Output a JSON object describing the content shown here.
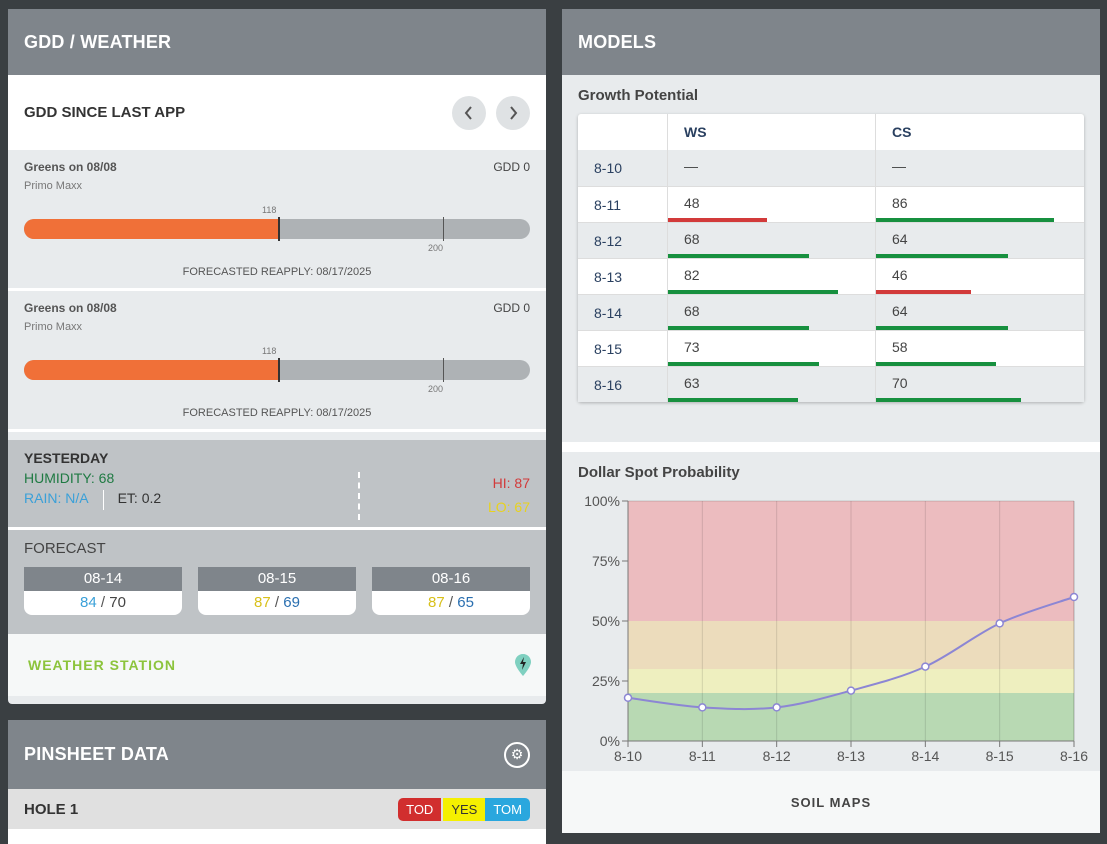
{
  "gdd_panel": {
    "title": "GDD / WEATHER",
    "subheader": "GDD SINCE LAST APP",
    "prev_icon": "chevron-left-icon",
    "next_icon": "chevron-right-icon",
    "cards": [
      {
        "location": "Greens on 08/08",
        "product": "Primo Maxx",
        "gdd_label": "GDD 0",
        "current_marker": "118",
        "threshold_marker": "200",
        "reapply": "FORECASTED REAPPLY: 08/17/2025"
      },
      {
        "location": "Greens on 08/08",
        "product": "Primo Maxx",
        "gdd_label": "GDD 0",
        "current_marker": "118",
        "threshold_marker": "200",
        "reapply": "FORECASTED REAPPLY: 08/17/2025"
      }
    ],
    "yesterday": {
      "title": "YESTERDAY",
      "humidity": "HUMIDITY: 68",
      "rain": "RAIN: N/A",
      "et": "ET: 0.2",
      "hi": "HI: 87",
      "lo": "LO: 67"
    },
    "forecast": {
      "title": "FORECAST",
      "days": [
        {
          "date": "08-14",
          "hi": "84",
          "lo": "70"
        },
        {
          "date": "08-15",
          "hi": "87",
          "lo": "69"
        },
        {
          "date": "08-16",
          "hi": "87",
          "lo": "65"
        }
      ]
    },
    "weather_station": "WEATHER STATION",
    "station_icon": "weather-station-pin-icon"
  },
  "pinsheet": {
    "title": "PINSHEET DATA",
    "settings_icon": "gear-icon",
    "hole": "HOLE 1",
    "tags": {
      "tod": "TOD",
      "yes": "YES",
      "tom": "TOM"
    }
  },
  "models": {
    "title": "MODELS",
    "growth_potential": {
      "title": "Growth Potential",
      "columns": [
        "WS",
        "CS"
      ],
      "rows": [
        {
          "date": "8-10",
          "ws": "—",
          "cs": "—"
        },
        {
          "date": "8-11",
          "ws": "48",
          "cs": "86"
        },
        {
          "date": "8-12",
          "ws": "68",
          "cs": "64"
        },
        {
          "date": "8-13",
          "ws": "82",
          "cs": "46"
        },
        {
          "date": "8-14",
          "ws": "68",
          "cs": "64"
        },
        {
          "date": "8-15",
          "ws": "73",
          "cs": "58"
        },
        {
          "date": "8-16",
          "ws": "63",
          "cs": "70"
        }
      ]
    },
    "dollar_spot": {
      "title": "Dollar Spot Probability"
    },
    "soil_maps": "SOIL MAPS"
  },
  "chart_data": {
    "type": "line",
    "title": "Dollar Spot Probability",
    "x": [
      "8-10",
      "8-11",
      "8-12",
      "8-13",
      "8-14",
      "8-15",
      "8-16"
    ],
    "series": [
      {
        "values": [
          18,
          14,
          14,
          21,
          31,
          49,
          60
        ]
      }
    ],
    "ylim": [
      0,
      100
    ],
    "yticks": [
      "0%",
      "25%",
      "50%",
      "75%",
      "100%"
    ],
    "bands": [
      {
        "from": 0,
        "to": 20,
        "color": "#b8d9b3"
      },
      {
        "from": 20,
        "to": 30,
        "color": "#eeefbf"
      },
      {
        "from": 30,
        "to": 50,
        "color": "#ecdcbc"
      },
      {
        "from": 50,
        "to": 100,
        "color": "#ecbcbf"
      }
    ],
    "line_color": "#8c86d4",
    "grid": true
  },
  "colors": {
    "header": "#7f858b",
    "gdd_fill": "#f07038",
    "green_bar": "#17903f",
    "red_bar": "#d23a3a"
  }
}
